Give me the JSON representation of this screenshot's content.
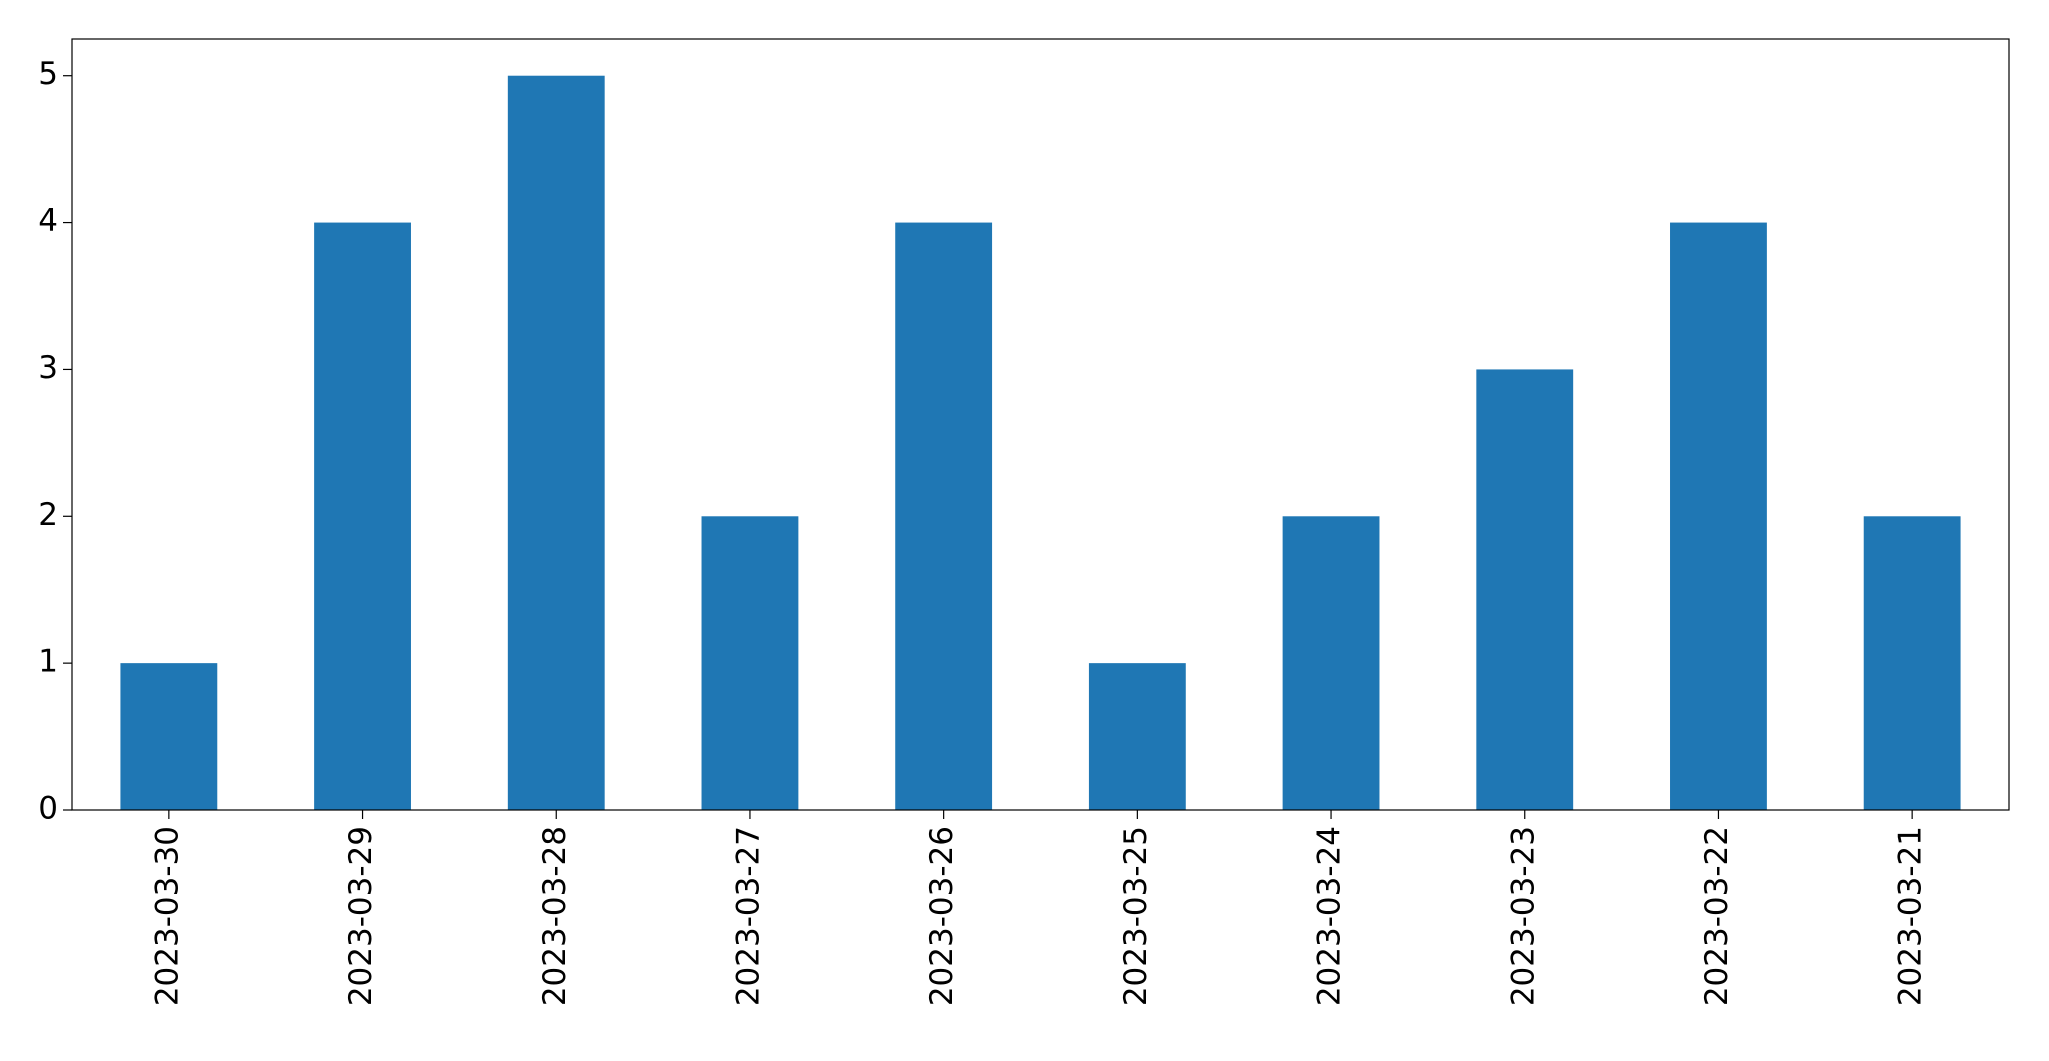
{
  "chart_data": {
    "type": "bar",
    "categories": [
      "2023-03-30",
      "2023-03-29",
      "2023-03-28",
      "2023-03-27",
      "2023-03-26",
      "2023-03-25",
      "2023-03-24",
      "2023-03-23",
      "2023-03-22",
      "2023-03-21"
    ],
    "values": [
      1,
      4,
      5,
      2,
      4,
      1,
      2,
      3,
      4,
      2
    ],
    "color": "#1f77b4",
    "ylim": [
      0,
      5.25
    ],
    "yticks": [
      0,
      1,
      2,
      3,
      4,
      5
    ],
    "grid": false
  }
}
